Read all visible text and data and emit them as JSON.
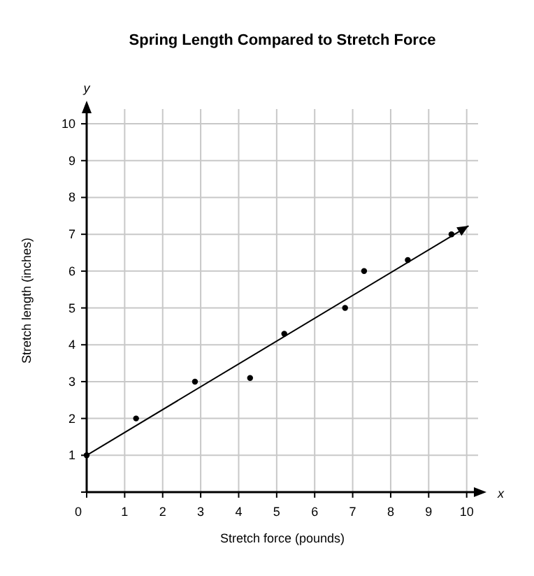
{
  "chart_data": {
    "type": "scatter",
    "title": "Spring Length Compared to Stretch Force",
    "xlabel": "Stretch force (pounds)",
    "ylabel": "Stretch length (inches)",
    "annotations": [
      "x",
      "y"
    ],
    "xlim": [
      0,
      10.3
    ],
    "ylim": [
      0,
      10.4
    ],
    "xticks": [
      0,
      1,
      2,
      3,
      4,
      5,
      6,
      7,
      8,
      9,
      10
    ],
    "yticks": [
      {
        "value": 0,
        "label": null
      },
      1,
      2,
      3,
      4,
      5,
      6,
      7,
      8,
      9,
      10
    ],
    "grid": true,
    "series": [
      {
        "marker": "circle",
        "color": "#000000",
        "x": [
          0,
          1.3,
          2.85,
          4.3,
          5.2,
          6.8,
          7.3,
          8.45,
          9.6
        ],
        "values": [
          1,
          2,
          3,
          3.1,
          4.3,
          5,
          6,
          6.3,
          7
        ]
      },
      {
        "type": "line",
        "color": "#000000",
        "x": [
          0,
          10.05
        ],
        "values": [
          1,
          7.23
        ],
        "line_style": "solid",
        "marker": "none"
      }
    ]
  }
}
